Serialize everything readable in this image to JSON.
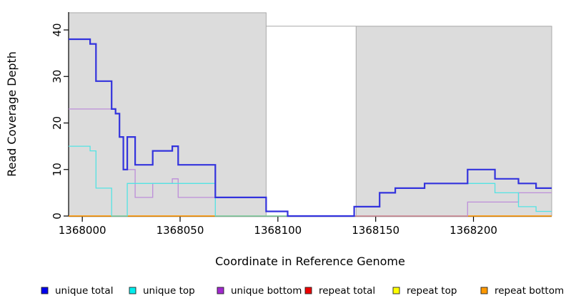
{
  "chart_data": {
    "type": "line",
    "style": "step-coverage-plot",
    "title": "",
    "xlabel": "Coordinate in Reference Genome",
    "ylabel": "Read Coverage Depth",
    "xlim": [
      1367993,
      1368240
    ],
    "ylim": [
      0,
      43.8
    ],
    "x_ticks": [
      1368000,
      1368050,
      1368100,
      1368150,
      1368200
    ],
    "y_ticks": [
      0,
      10,
      20,
      30,
      40
    ],
    "grid": false,
    "legend_position": "bottom",
    "plot_bg_color": "#ffffff",
    "region_fill_color": "#dcdcdc",
    "region_border_color": "#a9a9a9",
    "axis_color": "#000000",
    "background_regions": [
      {
        "x0": 1367993,
        "x1": 1368094,
        "top_value": 43.7
      },
      {
        "x0": 1368140,
        "x1": 1368240,
        "top_value": 40.8
      }
    ],
    "gap_top_line": {
      "x0": 1368094,
      "x1": 1368140,
      "value": 40.8,
      "color": "#a9a9a9"
    },
    "series": [
      {
        "name": "repeat total",
        "color": "#e00000",
        "line_width": 1.2,
        "points": [
          [
            1367993,
            0
          ],
          [
            1368240,
            0
          ]
        ]
      },
      {
        "name": "repeat top",
        "color": "#f5f500",
        "line_width": 1.2,
        "points": [
          [
            1367993,
            0
          ],
          [
            1368240,
            0
          ]
        ]
      },
      {
        "name": "repeat bottom",
        "color": "#ff9a0d",
        "line_width": 1.6,
        "points": [
          [
            1367993,
            0
          ],
          [
            1368240,
            0
          ]
        ]
      },
      {
        "name": "unique bottom",
        "color": "#bd8ed9",
        "line_width": 1.3,
        "points": [
          [
            1367993,
            23
          ],
          [
            1368017,
            22
          ],
          [
            1368019,
            17
          ],
          [
            1368021,
            10
          ],
          [
            1368027,
            4
          ],
          [
            1368036,
            7
          ],
          [
            1368046,
            8
          ],
          [
            1368049,
            4
          ],
          [
            1368094,
            1
          ],
          [
            1368105,
            0
          ],
          [
            1368197,
            3
          ],
          [
            1368223,
            5
          ],
          [
            1368240,
            5
          ]
        ]
      },
      {
        "name": "unique top",
        "color": "#53e3e3",
        "line_width": 1.3,
        "points": [
          [
            1367993,
            15
          ],
          [
            1368004,
            14
          ],
          [
            1368007,
            6
          ],
          [
            1368015,
            0
          ],
          [
            1368023,
            7
          ],
          [
            1368068,
            0
          ],
          [
            1368139,
            2
          ],
          [
            1368152,
            5
          ],
          [
            1368160,
            6
          ],
          [
            1368175,
            7
          ],
          [
            1368211,
            5
          ],
          [
            1368223,
            2
          ],
          [
            1368232,
            1
          ],
          [
            1368240,
            1
          ]
        ]
      },
      {
        "name": "unique total",
        "color": "#3333dd",
        "line_width": 2.2,
        "points": [
          [
            1367993,
            38
          ],
          [
            1368004,
            37
          ],
          [
            1368007,
            29
          ],
          [
            1368015,
            23
          ],
          [
            1368017,
            22
          ],
          [
            1368019,
            17
          ],
          [
            1368021,
            10
          ],
          [
            1368023,
            17
          ],
          [
            1368027,
            11
          ],
          [
            1368036,
            14
          ],
          [
            1368046,
            15
          ],
          [
            1368049,
            11
          ],
          [
            1368068,
            4
          ],
          [
            1368094,
            1
          ],
          [
            1368105,
            0
          ],
          [
            1368139,
            2
          ],
          [
            1368152,
            5
          ],
          [
            1368160,
            6
          ],
          [
            1368175,
            7
          ],
          [
            1368197,
            10
          ],
          [
            1368211,
            8
          ],
          [
            1368223,
            7
          ],
          [
            1368232,
            6
          ],
          [
            1368240,
            6
          ]
        ]
      }
    ],
    "legend": [
      {
        "label": "unique total",
        "color": "#0000ee"
      },
      {
        "label": "unique top",
        "color": "#00eeee"
      },
      {
        "label": "unique bottom",
        "color": "#a128cf"
      },
      {
        "label": "repeat total",
        "color": "#ee0000"
      },
      {
        "label": "repeat top",
        "color": "#ffff00"
      },
      {
        "label": "repeat bottom",
        "color": "#ff9900"
      }
    ]
  }
}
